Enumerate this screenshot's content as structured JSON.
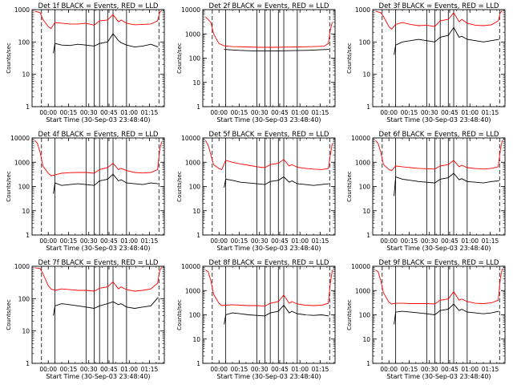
{
  "figure": {
    "xlabel": "Start Time (30-Sep-03 23:48:40)",
    "ylabel": "Counts/sec",
    "x_tick_labels": [
      "00:00",
      "00:15",
      "00:30",
      "00:45",
      "01:00",
      "01:15"
    ],
    "colors": {
      "events": "#000000",
      "lld": "#ff0000",
      "axes": "#000000",
      "background": "#ffffff"
    }
  },
  "chart_data": [
    {
      "type": "line",
      "title": "Det 1f BLACK = Events, RED = LLD",
      "xlabel": "Start Time (30-Sep-03 23:48:40)",
      "ylabel": "Counts/sec",
      "yscale": "log",
      "ylim": [
        1,
        1000
      ],
      "y_tick_labels": [
        "1000",
        "100",
        "10",
        "1"
      ],
      "x_ticks": [
        "00:00",
        "00:15",
        "00:30",
        "00:45",
        "01:00",
        "01:15"
      ],
      "series": [
        {
          "name": "Events",
          "color": "#000000",
          "x": [
            3.8,
            5,
            10,
            16,
            22,
            28,
            34,
            38,
            44,
            48,
            52,
            54,
            58,
            64,
            70,
            76,
            81.5
          ],
          "y": [
            45,
            90,
            80,
            78,
            85,
            80,
            75,
            90,
            100,
            180,
            110,
            95,
            80,
            70,
            75,
            85,
            70
          ]
        },
        {
          "name": "LLD",
          "color": "#ff0000",
          "x": [
            -10,
            -6,
            -4,
            0,
            2,
            5,
            10,
            16,
            22,
            28,
            34,
            38,
            44,
            48,
            52,
            54,
            58,
            64,
            70,
            76,
            81,
            82.5,
            84
          ],
          "y": [
            900,
            800,
            500,
            300,
            260,
            400,
            380,
            360,
            360,
            380,
            330,
            450,
            480,
            700,
            420,
            480,
            380,
            340,
            350,
            360,
            450,
            800,
            950
          ]
        }
      ]
    },
    {
      "type": "line",
      "title": "Det 2f BLACK = Events, RED = LLD",
      "xlabel": "Start Time (30-Sep-03 23:48:40)",
      "ylabel": "Counts/sec",
      "yscale": "log",
      "ylim": [
        1,
        10000
      ],
      "y_tick_labels": [
        "10000",
        "1000",
        "100",
        "10",
        "1"
      ],
      "x_ticks": [
        "00:00",
        "00:15",
        "00:30",
        "00:45",
        "01:00",
        "01:15"
      ],
      "series": [
        {
          "name": "Events",
          "color": "#000000",
          "x": [
            3.8,
            8,
            15,
            25,
            35,
            45,
            55,
            65,
            75,
            81.5
          ],
          "y": [
            230,
            220,
            210,
            200,
            200,
            200,
            205,
            210,
            220,
            230
          ]
        },
        {
          "name": "LLD",
          "color": "#ff0000",
          "x": [
            -10,
            -6,
            -4,
            0,
            4,
            10,
            20,
            30,
            40,
            50,
            60,
            70,
            78,
            81,
            82.5,
            84
          ],
          "y": [
            5000,
            3000,
            1000,
            400,
            320,
            300,
            290,
            280,
            280,
            285,
            290,
            300,
            310,
            400,
            1500,
            3000
          ]
        }
      ]
    },
    {
      "type": "line",
      "title": "Det 3f BLACK = Events, RED = LLD",
      "xlabel": "Start Time (30-Sep-03 23:48:40)",
      "ylabel": "Counts/sec",
      "yscale": "log",
      "ylim": [
        1,
        1000
      ],
      "y_tick_labels": [
        "1000",
        "100",
        "10",
        "1"
      ],
      "x_ticks": [
        "00:00",
        "00:15",
        "00:30",
        "00:45",
        "01:00",
        "01:15"
      ],
      "series": [
        {
          "name": "Events",
          "color": "#000000",
          "x": [
            3.8,
            5,
            10,
            16,
            22,
            28,
            34,
            38,
            44,
            48,
            52,
            54,
            58,
            64,
            70,
            76,
            81.5
          ],
          "y": [
            40,
            80,
            100,
            110,
            120,
            110,
            100,
            140,
            160,
            280,
            140,
            150,
            120,
            110,
            100,
            110,
            120
          ]
        },
        {
          "name": "LLD",
          "color": "#ff0000",
          "x": [
            -10,
            -6,
            -4,
            0,
            2,
            5,
            10,
            16,
            22,
            28,
            34,
            38,
            44,
            48,
            52,
            54,
            58,
            64,
            70,
            76,
            81,
            82.5,
            84
          ],
          "y": [
            900,
            800,
            600,
            300,
            250,
            350,
            400,
            350,
            320,
            330,
            300,
            450,
            500,
            800,
            420,
            500,
            380,
            330,
            320,
            340,
            450,
            800,
            950
          ]
        }
      ]
    },
    {
      "type": "line",
      "title": "Det 4f BLACK = Events, RED = LLD",
      "xlabel": "Start Time (30-Sep-03 23:48:40)",
      "ylabel": "Counts/sec",
      "yscale": "log",
      "ylim": [
        1,
        10000
      ],
      "y_tick_labels": [
        "10000",
        "1000",
        "100",
        "10",
        "1"
      ],
      "x_ticks": [
        "00:00",
        "00:15",
        "00:30",
        "00:45",
        "01:00",
        "01:15"
      ],
      "series": [
        {
          "name": "Events",
          "color": "#000000",
          "x": [
            3.8,
            5,
            10,
            16,
            22,
            28,
            34,
            38,
            44,
            48,
            52,
            54,
            58,
            64,
            70,
            76,
            81.5
          ],
          "y": [
            50,
            140,
            110,
            120,
            130,
            120,
            110,
            170,
            200,
            320,
            170,
            190,
            140,
            130,
            120,
            140,
            130
          ]
        },
        {
          "name": "LLD",
          "color": "#ff0000",
          "x": [
            -10,
            -8,
            -6,
            -4,
            0,
            2,
            5,
            10,
            16,
            22,
            28,
            34,
            38,
            44,
            48,
            52,
            54,
            58,
            64,
            70,
            76,
            81,
            82.5,
            84
          ],
          "y": [
            8000,
            6000,
            2500,
            700,
            350,
            280,
            300,
            350,
            370,
            380,
            380,
            350,
            500,
            600,
            900,
            500,
            560,
            450,
            380,
            360,
            380,
            500,
            3000,
            7000
          ]
        }
      ]
    },
    {
      "type": "line",
      "title": "Det 5f BLACK = Events, RED = LLD",
      "xlabel": "Start Time (30-Sep-03 23:48:40)",
      "ylabel": "Counts/sec",
      "yscale": "log",
      "ylim": [
        1,
        10000
      ],
      "y_tick_labels": [
        "10000",
        "1000",
        "100",
        "10",
        "1"
      ],
      "x_ticks": [
        "00:00",
        "00:15",
        "00:30",
        "00:45",
        "01:00",
        "01:15"
      ],
      "series": [
        {
          "name": "Events",
          "color": "#000000",
          "x": [
            3.8,
            5,
            10,
            16,
            22,
            28,
            34,
            38,
            44,
            48,
            52,
            54,
            58,
            64,
            70,
            76,
            81.5
          ],
          "y": [
            90,
            200,
            180,
            150,
            140,
            130,
            120,
            160,
            180,
            250,
            150,
            170,
            130,
            120,
            110,
            120,
            130
          ]
        },
        {
          "name": "LLD",
          "color": "#ff0000",
          "x": [
            -10,
            -8,
            -6,
            -4,
            0,
            2,
            5,
            10,
            16,
            22,
            28,
            34,
            38,
            44,
            48,
            52,
            54,
            58,
            64,
            70,
            76,
            81,
            82.5,
            84
          ],
          "y": [
            8000,
            5000,
            2000,
            800,
            550,
            500,
            1200,
            1000,
            850,
            750,
            650,
            600,
            800,
            900,
            1300,
            700,
            800,
            620,
            560,
            520,
            500,
            550,
            2000,
            6000
          ]
        }
      ]
    },
    {
      "type": "line",
      "title": "Det 6f BLACK = Events, RED = LLD",
      "xlabel": "Start Time (30-Sep-03 23:48:40)",
      "ylabel": "Counts/sec",
      "yscale": "log",
      "ylim": [
        1,
        10000
      ],
      "y_tick_labels": [
        "10000",
        "1000",
        "100",
        "10",
        "1"
      ],
      "x_ticks": [
        "00:00",
        "00:15",
        "00:30",
        "00:45",
        "01:00",
        "01:15"
      ],
      "series": [
        {
          "name": "Events",
          "color": "#000000",
          "x": [
            3.8,
            5,
            10,
            16,
            22,
            28,
            34,
            38,
            44,
            48,
            52,
            54,
            58,
            64,
            70,
            76,
            81.5
          ],
          "y": [
            40,
            250,
            200,
            180,
            160,
            150,
            140,
            200,
            230,
            350,
            190,
            210,
            160,
            150,
            140,
            160,
            170
          ]
        },
        {
          "name": "LLD",
          "color": "#ff0000",
          "x": [
            -10,
            -8,
            -6,
            -4,
            0,
            2,
            5,
            10,
            16,
            22,
            28,
            34,
            38,
            44,
            48,
            52,
            54,
            58,
            64,
            70,
            76,
            81,
            82.5,
            84
          ],
          "y": [
            8000,
            6000,
            2500,
            800,
            500,
            450,
            700,
            650,
            600,
            560,
            540,
            520,
            700,
            800,
            1200,
            650,
            750,
            600,
            550,
            520,
            560,
            650,
            3000,
            8000
          ]
        }
      ]
    },
    {
      "type": "line",
      "title": "Det 7f BLACK = Events, RED = LLD",
      "xlabel": "Start Time (30-Sep-03 23:48:40)",
      "ylabel": "Counts/sec",
      "yscale": "log",
      "ylim": [
        1,
        1000
      ],
      "y_tick_labels": [
        "1000",
        "100",
        "10",
        "1"
      ],
      "x_ticks": [
        "00:00",
        "00:15",
        "00:30",
        "00:45",
        "01:00",
        "01:15"
      ],
      "series": [
        {
          "name": "Events",
          "color": "#000000",
          "x": [
            3.8,
            5,
            10,
            16,
            22,
            28,
            34,
            38,
            44,
            48,
            52,
            54,
            58,
            64,
            70,
            76,
            81.5
          ],
          "y": [
            30,
            60,
            70,
            65,
            60,
            55,
            50,
            60,
            70,
            80,
            65,
            70,
            55,
            50,
            55,
            60,
            110
          ]
        },
        {
          "name": "LLD",
          "color": "#ff0000",
          "x": [
            -10,
            -6,
            -4,
            0,
            2,
            5,
            10,
            16,
            22,
            28,
            34,
            38,
            44,
            48,
            52,
            54,
            58,
            64,
            70,
            76,
            81,
            82.5,
            84
          ],
          "y": [
            900,
            850,
            600,
            250,
            200,
            180,
            200,
            190,
            180,
            180,
            170,
            210,
            230,
            330,
            200,
            230,
            190,
            170,
            180,
            200,
            300,
            700,
            950
          ]
        }
      ]
    },
    {
      "type": "line",
      "title": "Det 8f BLACK = Events, RED = LLD",
      "xlabel": "Start Time (30-Sep-03 23:48:40)",
      "ylabel": "Counts/sec",
      "yscale": "log",
      "ylim": [
        1,
        10000
      ],
      "y_tick_labels": [
        "10000",
        "1000",
        "100",
        "10",
        "1"
      ],
      "x_ticks": [
        "00:00",
        "00:15",
        "00:30",
        "00:45",
        "01:00",
        "01:15"
      ],
      "series": [
        {
          "name": "Events",
          "color": "#000000",
          "x": [
            3.8,
            5,
            10,
            16,
            22,
            28,
            34,
            38,
            44,
            48,
            52,
            54,
            58,
            64,
            70,
            76,
            81.5
          ],
          "y": [
            40,
            100,
            120,
            110,
            100,
            95,
            90,
            120,
            140,
            250,
            120,
            140,
            110,
            100,
            95,
            100,
            90
          ]
        },
        {
          "name": "LLD",
          "color": "#ff0000",
          "x": [
            -10,
            -8,
            -6,
            -4,
            0,
            2,
            5,
            10,
            16,
            22,
            28,
            34,
            38,
            44,
            48,
            52,
            54,
            58,
            64,
            70,
            76,
            81,
            82.5,
            84
          ],
          "y": [
            7000,
            6000,
            2500,
            700,
            300,
            240,
            250,
            260,
            250,
            240,
            240,
            230,
            300,
            350,
            650,
            300,
            350,
            280,
            250,
            240,
            250,
            300,
            2000,
            7000
          ]
        }
      ]
    },
    {
      "type": "line",
      "title": "Det 9f BLACK = Events, RED = LLD",
      "xlabel": "Start Time (30-Sep-03 23:48:40)",
      "ylabel": "Counts/sec",
      "yscale": "log",
      "ylim": [
        1,
        10000
      ],
      "y_tick_labels": [
        "10000",
        "1000",
        "100",
        "10",
        "1"
      ],
      "x_ticks": [
        "00:00",
        "00:15",
        "00:30",
        "00:45",
        "01:00",
        "01:15"
      ],
      "series": [
        {
          "name": "Events",
          "color": "#000000",
          "x": [
            3.8,
            5,
            10,
            16,
            22,
            28,
            34,
            38,
            44,
            48,
            52,
            54,
            58,
            64,
            70,
            76,
            81.5
          ],
          "y": [
            40,
            130,
            140,
            130,
            120,
            110,
            100,
            150,
            170,
            280,
            150,
            170,
            130,
            120,
            110,
            120,
            140
          ]
        },
        {
          "name": "LLD",
          "color": "#ff0000",
          "x": [
            -10,
            -8,
            -6,
            -4,
            0,
            2,
            5,
            10,
            16,
            22,
            28,
            34,
            38,
            44,
            48,
            52,
            54,
            58,
            64,
            70,
            76,
            81,
            82.5,
            84
          ],
          "y": [
            7000,
            6000,
            2500,
            800,
            330,
            280,
            300,
            300,
            290,
            290,
            290,
            280,
            400,
            450,
            900,
            400,
            450,
            350,
            300,
            290,
            310,
            400,
            3000,
            8000
          ]
        }
      ]
    }
  ]
}
